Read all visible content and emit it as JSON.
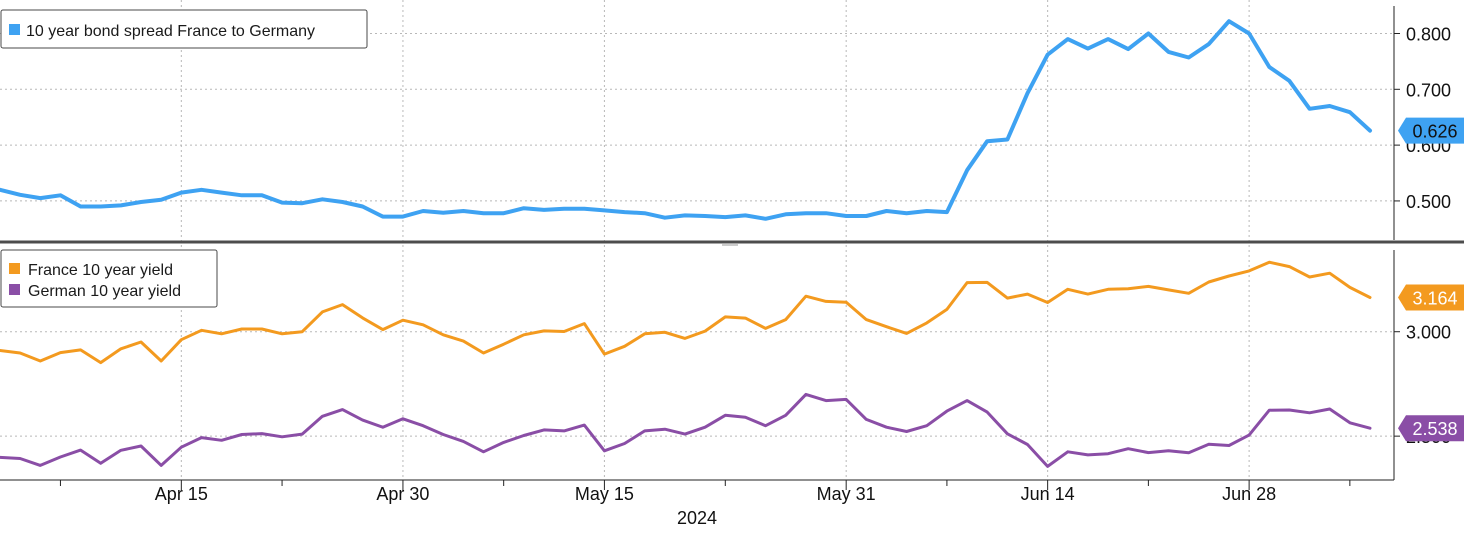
{
  "chart_data": [
    {
      "type": "line",
      "panel": "top",
      "series": [
        {
          "name": "10 year bond spread France to Germany",
          "color": "#3ea2f2",
          "last_value_label": "0.626",
          "values": [
            0.52,
            0.511,
            0.505,
            0.51,
            0.49,
            0.49,
            0.492,
            0.498,
            0.502,
            0.515,
            0.52,
            0.515,
            0.51,
            0.51,
            0.497,
            0.496,
            0.503,
            0.498,
            0.49,
            0.472,
            0.472,
            0.482,
            0.479,
            0.482,
            0.478,
            0.478,
            0.487,
            0.484,
            0.486,
            0.486,
            0.483,
            0.48,
            0.478,
            0.47,
            0.474,
            0.473,
            0.471,
            0.474,
            0.468,
            0.476,
            0.478,
            0.478,
            0.473,
            0.473,
            0.482,
            0.478,
            0.482,
            0.48,
            0.555,
            0.607,
            0.61,
            0.693,
            0.762,
            0.79,
            0.773,
            0.79,
            0.772,
            0.8,
            0.767,
            0.757,
            0.781,
            0.822,
            0.8,
            0.74,
            0.715,
            0.665,
            0.67,
            0.659,
            0.626
          ]
        }
      ],
      "ylim": [
        0.43,
        0.86
      ],
      "yticks": [
        0.5,
        0.6,
        0.7,
        0.8
      ],
      "ytick_labels": [
        "0.500",
        "0.600",
        "0.700",
        "0.800"
      ],
      "legend_position": "top-left",
      "grid": true
    },
    {
      "type": "line",
      "panel": "bottom",
      "series": [
        {
          "name": "France 10 year yield",
          "color": "#f39a1f",
          "last_value_label": "3.164",
          "values": [
            2.91,
            2.898,
            2.86,
            2.9,
            2.913,
            2.852,
            2.918,
            2.951,
            2.86,
            2.962,
            3.007,
            2.99,
            3.013,
            3.013,
            2.99,
            3.0,
            3.095,
            3.13,
            3.066,
            3.01,
            3.055,
            3.033,
            2.985,
            2.955,
            2.898,
            2.94,
            2.985,
            3.004,
            3.001,
            3.039,
            2.893,
            2.93,
            2.99,
            2.997,
            2.968,
            3.003,
            3.071,
            3.065,
            3.016,
            3.058,
            3.17,
            3.145,
            3.141,
            3.058,
            3.024,
            2.992,
            3.042,
            3.107,
            3.235,
            3.236,
            3.161,
            3.18,
            3.14,
            3.203,
            3.18,
            3.203,
            3.206,
            3.217,
            3.2,
            3.184,
            3.238,
            3.267,
            3.291,
            3.333,
            3.312,
            3.262,
            3.28,
            3.212,
            3.164
          ]
        },
        {
          "name": "German 10 year yield",
          "color": "#8a4ea6",
          "last_value_label": "2.538",
          "values": [
            2.398,
            2.393,
            2.36,
            2.4,
            2.433,
            2.37,
            2.432,
            2.453,
            2.36,
            2.447,
            2.493,
            2.48,
            2.508,
            2.512,
            2.497,
            2.51,
            2.595,
            2.627,
            2.577,
            2.543,
            2.583,
            2.55,
            2.508,
            2.475,
            2.425,
            2.47,
            2.503,
            2.53,
            2.525,
            2.553,
            2.43,
            2.465,
            2.525,
            2.533,
            2.51,
            2.543,
            2.6,
            2.59,
            2.55,
            2.6,
            2.7,
            2.67,
            2.676,
            2.58,
            2.543,
            2.522,
            2.55,
            2.62,
            2.67,
            2.615,
            2.511,
            2.46,
            2.355,
            2.425,
            2.41,
            2.416,
            2.44,
            2.421,
            2.43,
            2.42,
            2.461,
            2.455,
            2.505,
            2.624,
            2.625,
            2.612,
            2.63,
            2.564,
            2.538
          ]
        }
      ],
      "ylim": [
        2.29,
        3.42
      ],
      "yticks": [
        2.5,
        3.0
      ],
      "ytick_labels": [
        "2.500",
        "3.000"
      ],
      "legend_position": "top-left",
      "grid": true
    }
  ],
  "x_axis": {
    "tick_labels": [
      "Apr 15",
      "Apr 30",
      "May 15",
      "May 31",
      "Jun 14",
      "Jun 28"
    ],
    "tick_index": [
      9,
      20,
      30,
      42,
      52,
      62
    ],
    "minor_tick_index": [
      3,
      14,
      25,
      36,
      47,
      57,
      67
    ],
    "year_label": "2024"
  }
}
